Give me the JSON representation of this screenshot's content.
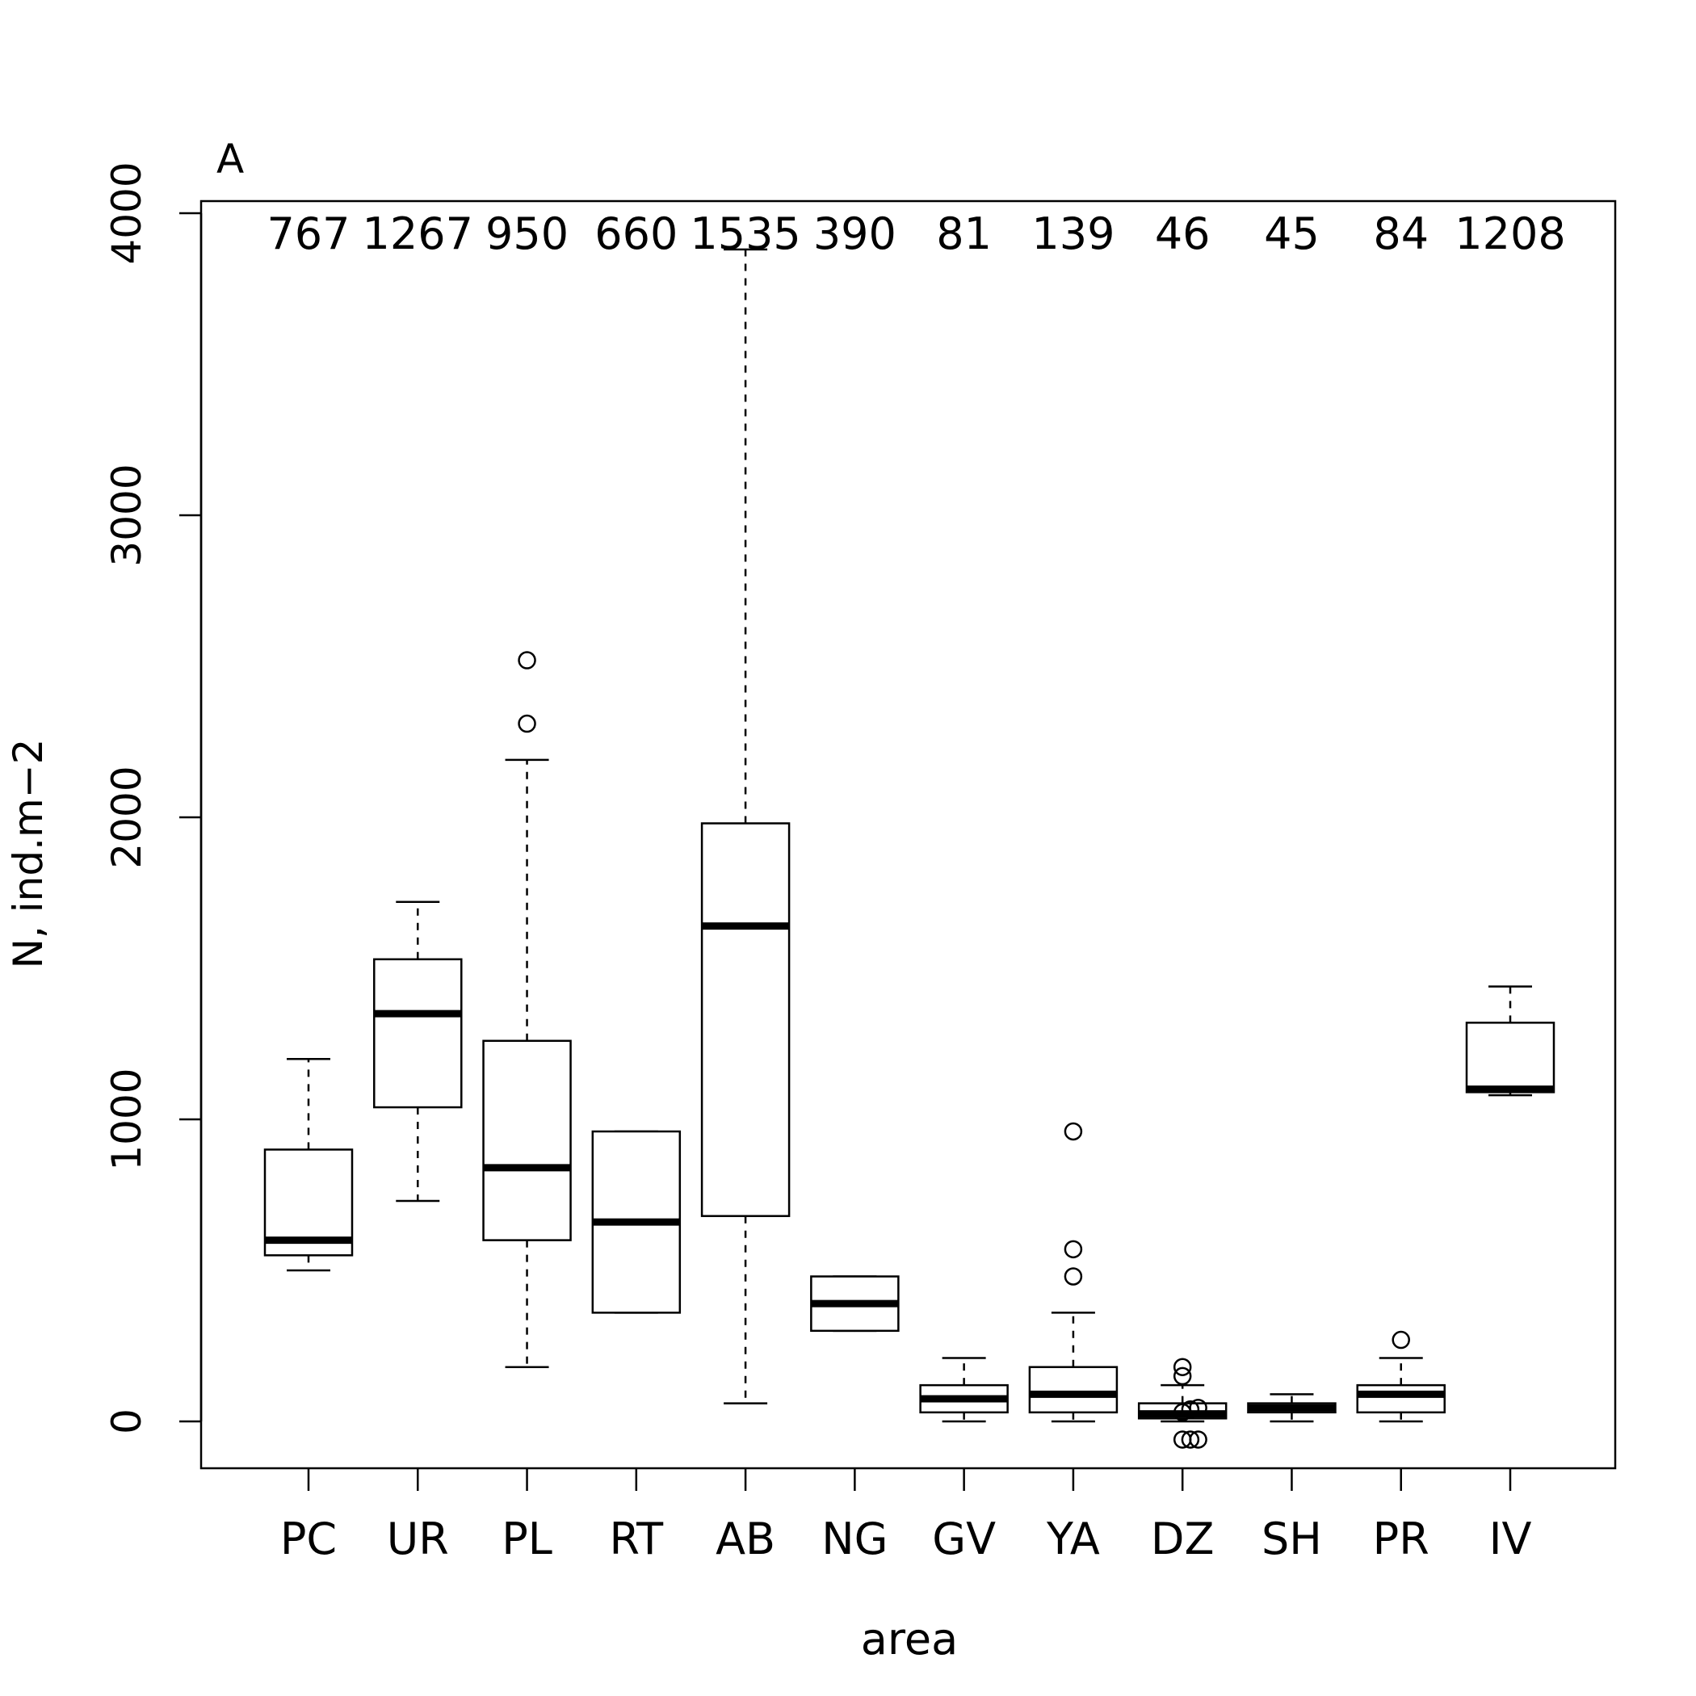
{
  "chart_data": {
    "type": "box",
    "panel_label": "A",
    "xlabel": "area",
    "ylabel": "N, ind.m−2",
    "ylim": [
      -155,
      4040
    ],
    "yticks": [
      0,
      1000,
      2000,
      3000,
      4000
    ],
    "ytick_labels": [
      "0",
      "1000",
      "2000",
      "3000",
      "4000"
    ],
    "categories": [
      "PC",
      "UR",
      "PL",
      "RT",
      "AB",
      "NG",
      "GV",
      "YA",
      "DZ",
      "SH",
      "PR",
      "IV"
    ],
    "annotations": [
      "767",
      "1267",
      "950",
      "660",
      "1535",
      "390",
      "81",
      "139",
      "46",
      "45",
      "84",
      "1208"
    ],
    "boxes": [
      {
        "min": 500,
        "q1": 550,
        "median": 600,
        "q3": 900,
        "max": 1200,
        "outliers": []
      },
      {
        "min": 730,
        "q1": 1040,
        "median": 1350,
        "q3": 1530,
        "max": 1720,
        "outliers": []
      },
      {
        "min": 180,
        "q1": 600,
        "median": 840,
        "q3": 1260,
        "max": 2190,
        "outliers": [
          2310,
          2520
        ]
      },
      {
        "min": 360,
        "q1": 360,
        "median": 660,
        "q3": 960,
        "max": 960,
        "outliers": []
      },
      {
        "min": 60,
        "q1": 680,
        "median": 1640,
        "q3": 1980,
        "max": 3880,
        "outliers": []
      },
      {
        "min": 300,
        "q1": 300,
        "median": 390,
        "q3": 480,
        "max": 480,
        "outliers": []
      },
      {
        "min": 0,
        "q1": 30,
        "median": 75,
        "q3": 120,
        "max": 210,
        "outliers": []
      },
      {
        "min": 0,
        "q1": 30,
        "median": 90,
        "q3": 180,
        "max": 360,
        "outliers": [
          480,
          570,
          960
        ]
      },
      {
        "min": 0,
        "q1": 10,
        "median": 25,
        "q3": 60,
        "max": 120,
        "outliers": [
          -60,
          30,
          150,
          180
        ]
      },
      {
        "min": 0,
        "q1": 30,
        "median": 45,
        "q3": 60,
        "max": 90,
        "outliers": []
      },
      {
        "min": 0,
        "q1": 30,
        "median": 90,
        "q3": 120,
        "max": 210,
        "outliers": [
          270
        ]
      },
      {
        "min": 1080,
        "q1": 1090,
        "median": 1100,
        "q3": 1320,
        "max": 1440,
        "outliers": []
      }
    ],
    "outlier_offsets": [
      [],
      [],
      [],
      [],
      [],
      [],
      [],
      [],
      [
        [
          0,
          -60
        ],
        [
          0.18,
          -60
        ],
        [
          0.36,
          -60
        ],
        [
          0,
          30
        ],
        [
          0.18,
          40
        ],
        [
          0.36,
          45
        ],
        [
          0,
          150
        ],
        [
          0,
          180
        ]
      ],
      [],
      [],
      []
    ],
    "grid": false,
    "legend": false
  }
}
